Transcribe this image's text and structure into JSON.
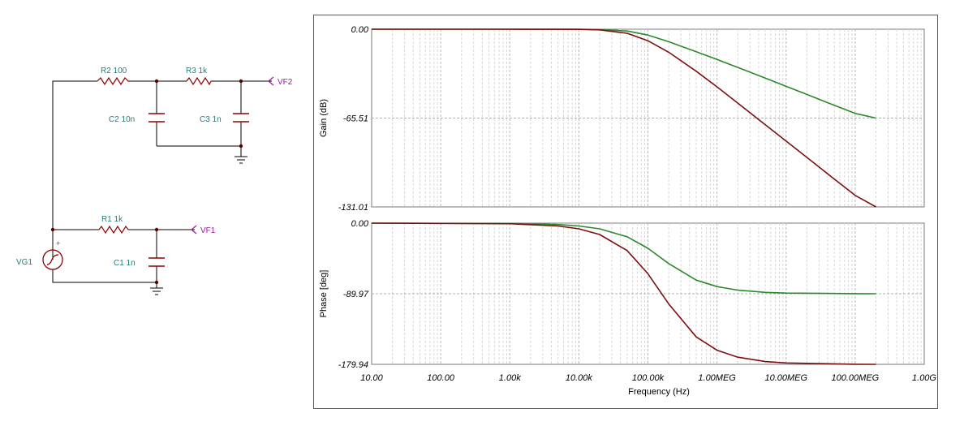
{
  "schematic": {
    "components": {
      "r2": "R2 100",
      "r3": "R3 1k",
      "c2": "C2 10n",
      "c3": "C3 1n",
      "vf2": "VF2",
      "r1": "R1 1k",
      "c1": "C1 1n",
      "vf1": "VF1",
      "vg1": "VG1",
      "plus": "+"
    },
    "colors": {
      "wire": "#000000",
      "component": "#8b0000",
      "label": "#1f7f7f",
      "probe": "#9a1a9a",
      "node": "#5a0000"
    }
  },
  "chart_data": [
    {
      "type": "line",
      "ylabel": "Gain (dB)",
      "xscale": "log",
      "xlim": [
        10,
        1000000000
      ],
      "ylim": [
        -131.01,
        0
      ],
      "yticks": [
        "0.00",
        "-65.51",
        "-131.01"
      ],
      "grid": true,
      "series": [
        {
          "color": "#2a8a2a",
          "x": [
            10,
            100,
            1000,
            10000,
            20000,
            50000,
            100000,
            200000,
            500000,
            1000000,
            2000000,
            5000000,
            10000000,
            20000000,
            50000000,
            100000000,
            200000000
          ],
          "y": [
            0,
            0,
            0,
            -0.06,
            -0.25,
            -1.3,
            -4.3,
            -9.2,
            -16.6,
            -22.3,
            -28.2,
            -36.1,
            -42.1,
            -48.1,
            -56.1,
            -62.1,
            -65.5
          ]
        },
        {
          "color": "#7a1010",
          "x": [
            10,
            100,
            1000,
            10000,
            20000,
            50000,
            100000,
            200000,
            500000,
            1000000,
            2000000,
            5000000,
            10000000,
            20000000,
            50000000,
            100000000,
            200000000
          ],
          "y": [
            0,
            0,
            0,
            -0.1,
            -0.5,
            -3.0,
            -8.5,
            -17.0,
            -31.0,
            -42.5,
            -54.5,
            -70.5,
            -82.5,
            -94.5,
            -110.5,
            -122.5,
            -131.0
          ]
        }
      ]
    },
    {
      "type": "line",
      "xlabel": "Frequency (Hz)",
      "ylabel": "Phase [deg]",
      "xscale": "log",
      "xlim": [
        10,
        1000000000
      ],
      "ylim": [
        -179.94,
        0
      ],
      "yticks": [
        "0.00",
        "-89.97",
        "-179.94"
      ],
      "xticks": [
        "10.00",
        "100.00",
        "1.00k",
        "10.00k",
        "100.00k",
        "1.00MEG",
        "10.00MEG",
        "100.00MEG",
        "1.00G"
      ],
      "grid": true,
      "series": [
        {
          "color": "#2a8a2a",
          "x": [
            10,
            1000,
            5000,
            10000,
            20000,
            50000,
            100000,
            200000,
            500000,
            1000000,
            2000000,
            5000000,
            10000000,
            100000000,
            200000000
          ],
          "y": [
            0,
            -0.4,
            -1.8,
            -3.6,
            -7.2,
            -17.4,
            -32.1,
            -51.5,
            -72.6,
            -80.9,
            -85.4,
            -88.2,
            -89.1,
            -89.9,
            -89.97
          ]
        },
        {
          "color": "#7a1010",
          "x": [
            10,
            1000,
            5000,
            10000,
            20000,
            50000,
            100000,
            200000,
            500000,
            1000000,
            2000000,
            5000000,
            10000000,
            100000000,
            200000000
          ],
          "y": [
            0,
            -0.7,
            -3.6,
            -7.2,
            -14.5,
            -35.0,
            -64.5,
            -103.0,
            -145.0,
            -161.9,
            -170.8,
            -176.4,
            -178.2,
            -179.8,
            -179.94
          ]
        }
      ]
    }
  ]
}
